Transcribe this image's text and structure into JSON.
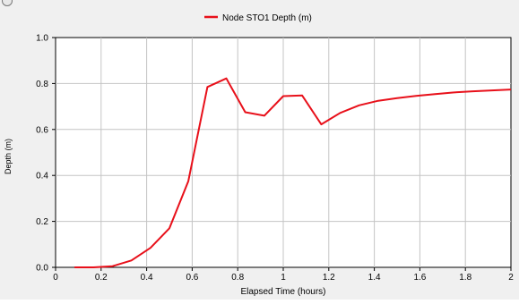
{
  "colors": {
    "series": "#e8101a",
    "grid": "#c4c4c4",
    "axis": "#000000",
    "plot_background": "#ffffff",
    "window_background": "#f0f0f0"
  },
  "chart_data": {
    "type": "line",
    "title": "",
    "xlabel": "Elapsed Time (hours)",
    "ylabel": "Depth (m)",
    "xlim": [
      0,
      2
    ],
    "ylim": [
      0,
      1
    ],
    "xticks": [
      "0",
      "0.2",
      "0.4",
      "0.6",
      "0.8",
      "1",
      "1.2",
      "1.4",
      "1.6",
      "1.8",
      "2"
    ],
    "yticks": [
      "0.0",
      "0.2",
      "0.4",
      "0.6",
      "0.8",
      "1.0"
    ],
    "grid": true,
    "legend": "top-center",
    "series": [
      {
        "name": "Node STO1 Depth (m)",
        "x": [
          0.083,
          0.167,
          0.25,
          0.333,
          0.417,
          0.5,
          0.583,
          0.667,
          0.75,
          0.833,
          0.917,
          1.0,
          1.083,
          1.167,
          1.25,
          1.333,
          1.417,
          1.5,
          1.583,
          1.667,
          1.75,
          1.833,
          1.917,
          2.0
        ],
        "y": [
          0.0,
          0.0,
          0.005,
          0.03,
          0.085,
          0.17,
          0.375,
          0.785,
          0.822,
          0.675,
          0.66,
          0.745,
          0.748,
          0.622,
          0.672,
          0.705,
          0.725,
          0.736,
          0.746,
          0.754,
          0.761,
          0.766,
          0.77,
          0.774
        ]
      }
    ]
  }
}
